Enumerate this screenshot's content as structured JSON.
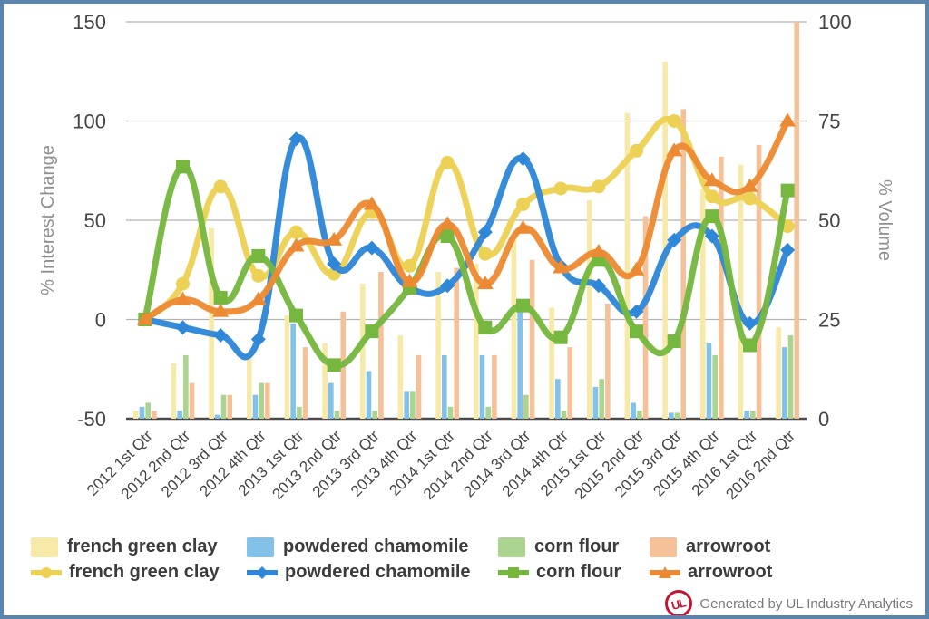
{
  "frame": {
    "border_color": "#5c83ac",
    "background_color": "#ffffff"
  },
  "chart_data": {
    "type": "combo (grouped bar + smoothed line)",
    "categories": [
      "2012 1st Qtr",
      "2012 2nd Qtr",
      "2012 3rd Qtr",
      "2012 4th Qtr",
      "2013 1st Qtr",
      "2013 2nd Qtr",
      "2013 3rd Qtr",
      "2013 4th Qtr",
      "2014 1st Qtr",
      "2014 2nd Qtr",
      "2014 3rd Qtr",
      "2014 4th Qtr",
      "2015 1st Qtr",
      "2015 2nd Qtr",
      "2015 3rd Qtr",
      "2015 4th Qtr",
      "2016 1st Qtr",
      "2016 2nd Qtr"
    ],
    "left_axis": {
      "title": "% Interest Change",
      "ticks": [
        150,
        100,
        50,
        0,
        -50
      ],
      "min": -50,
      "max": 150
    },
    "right_axis": {
      "title": "% Volume",
      "ticks": [
        100,
        75,
        50,
        25,
        0
      ],
      "min": 0,
      "max": 100
    },
    "grid": "horizontal only",
    "legend_position": "bottom",
    "bar_series": [
      {
        "name": "french green clay",
        "color": "#f7e9a8",
        "axis": "right",
        "values": [
          2,
          14,
          48,
          16,
          26,
          19,
          34,
          21,
          37,
          39,
          46,
          28,
          55,
          77,
          90,
          58,
          64,
          23
        ]
      },
      {
        "name": "powdered chamomile",
        "color": "#82c1e8",
        "axis": "right",
        "values": [
          3,
          2,
          1,
          6,
          24,
          9,
          12,
          7,
          16,
          16,
          28,
          10,
          8,
          4,
          1.5,
          19,
          2,
          18
        ]
      },
      {
        "name": "corn flour",
        "color": "#abd490",
        "axis": "right",
        "values": [
          4,
          16,
          6,
          9,
          3,
          2,
          2,
          7,
          3,
          3,
          6,
          2,
          10,
          2,
          1.5,
          16,
          2,
          21
        ]
      },
      {
        "name": "arrowroot",
        "color": "#f5c199",
        "axis": "right",
        "values": [
          2,
          9,
          6,
          9,
          18,
          27,
          37,
          16,
          38,
          16,
          40,
          18,
          29,
          51,
          78,
          66,
          69,
          100
        ]
      }
    ],
    "line_series": [
      {
        "name": "french green clay",
        "color": "#ecd155",
        "marker": "circle",
        "axis": "left",
        "values": [
          0,
          18,
          67,
          22,
          44,
          23,
          54,
          27,
          79,
          33,
          58,
          66,
          67,
          85,
          100,
          62,
          61,
          47
        ]
      },
      {
        "name": "powdered chamomile",
        "color": "#2f87d8",
        "marker": "diamond",
        "axis": "left",
        "values": [
          0,
          -4,
          -8,
          -10,
          91,
          28,
          36,
          16,
          17,
          44,
          81,
          27,
          17,
          4,
          40,
          42,
          -2,
          35
        ]
      },
      {
        "name": "corn flour",
        "color": "#76b73f",
        "marker": "square",
        "axis": "left",
        "values": [
          0,
          77,
          11,
          32,
          2,
          -23,
          -6,
          16,
          42,
          -4,
          7,
          -9,
          30,
          -6,
          -11,
          52,
          -13,
          65
        ]
      },
      {
        "name": "arrowroot",
        "color": "#ec8a33",
        "marker": "triangle",
        "axis": "left",
        "values": [
          0,
          10,
          4,
          10,
          37,
          40,
          58,
          19,
          48,
          18,
          46,
          26,
          34,
          25,
          85,
          70,
          67,
          100
        ]
      }
    ],
    "colors": {
      "gridline": "#b3b3b3",
      "axis_line": "#4a4a4a",
      "tick_text": "#454545",
      "axis_title_text": "#8f8f8f"
    }
  },
  "legend": {
    "bar_items": [
      "french green clay",
      "powdered chamomile",
      "corn flour",
      "arrowroot"
    ],
    "line_items": [
      "french green clay",
      "powdered chamomile",
      "corn flour",
      "arrowroot"
    ]
  },
  "footer": {
    "logo_text": "UL",
    "logo_color": "#c41432",
    "credit": "Generated by UL Industry Analytics"
  }
}
